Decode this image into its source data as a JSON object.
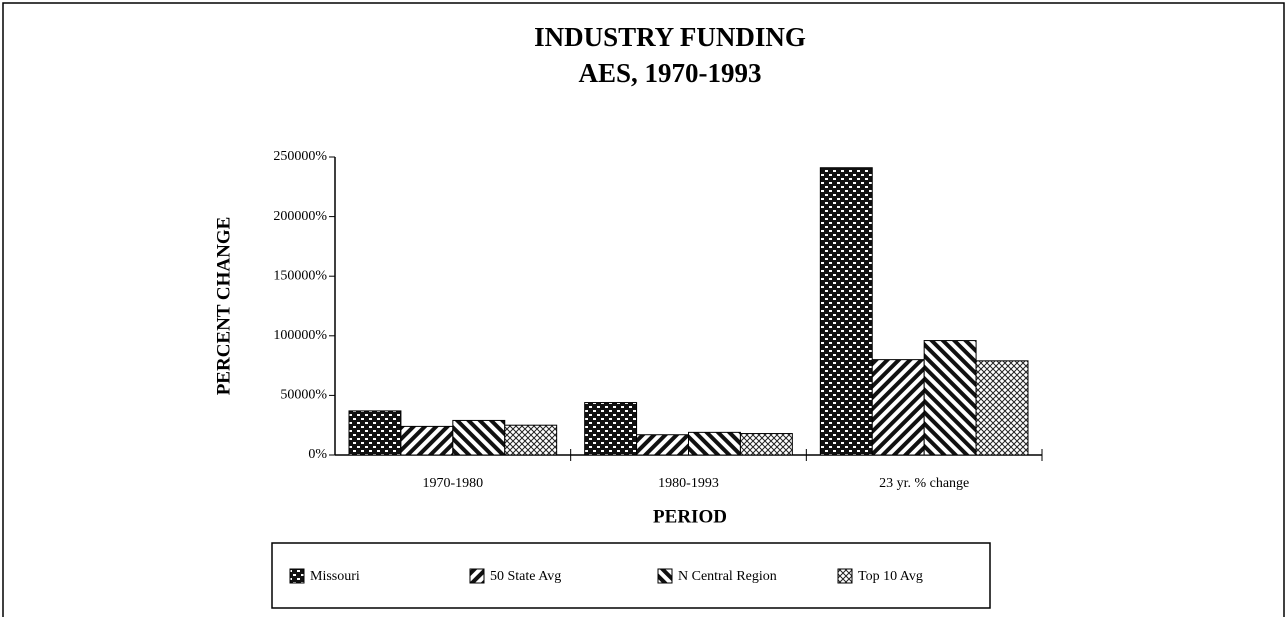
{
  "chart_data": {
    "type": "bar",
    "title": "INDUSTRY FUNDING",
    "subtitle": "AES, 1970-1993",
    "x_label": "PERIOD",
    "y_label": "PERCENT CHANGE",
    "categories": [
      "1970-1980",
      "1980-1993",
      "23 yr. % change"
    ],
    "series": [
      {
        "name": "Missouri",
        "color": "#000000",
        "pattern": "dots",
        "values": [
          37000,
          44000,
          241000
        ]
      },
      {
        "name": "50 State Avg",
        "color": "#000000",
        "pattern": "forward-stripes",
        "values": [
          24000,
          17000,
          80000
        ]
      },
      {
        "name": "N Central Region",
        "color": "#000000",
        "pattern": "back-stripes",
        "values": [
          29000,
          19000,
          96000
        ]
      },
      {
        "name": "Top 10 Avg",
        "color": "#000000",
        "pattern": "crosshatch",
        "values": [
          25000,
          18000,
          79000
        ]
      }
    ],
    "ylim": [
      0,
      250000
    ],
    "yticks": [
      {
        "value": 0,
        "label": "0%"
      },
      {
        "value": 50000,
        "label": "50000%"
      },
      {
        "value": 100000,
        "label": "100000%"
      },
      {
        "value": 150000,
        "label": "150000%"
      },
      {
        "value": 200000,
        "label": "200000%"
      },
      {
        "value": 250000,
        "label": "250000%"
      }
    ],
    "legend": "bottom",
    "grid": false
  }
}
